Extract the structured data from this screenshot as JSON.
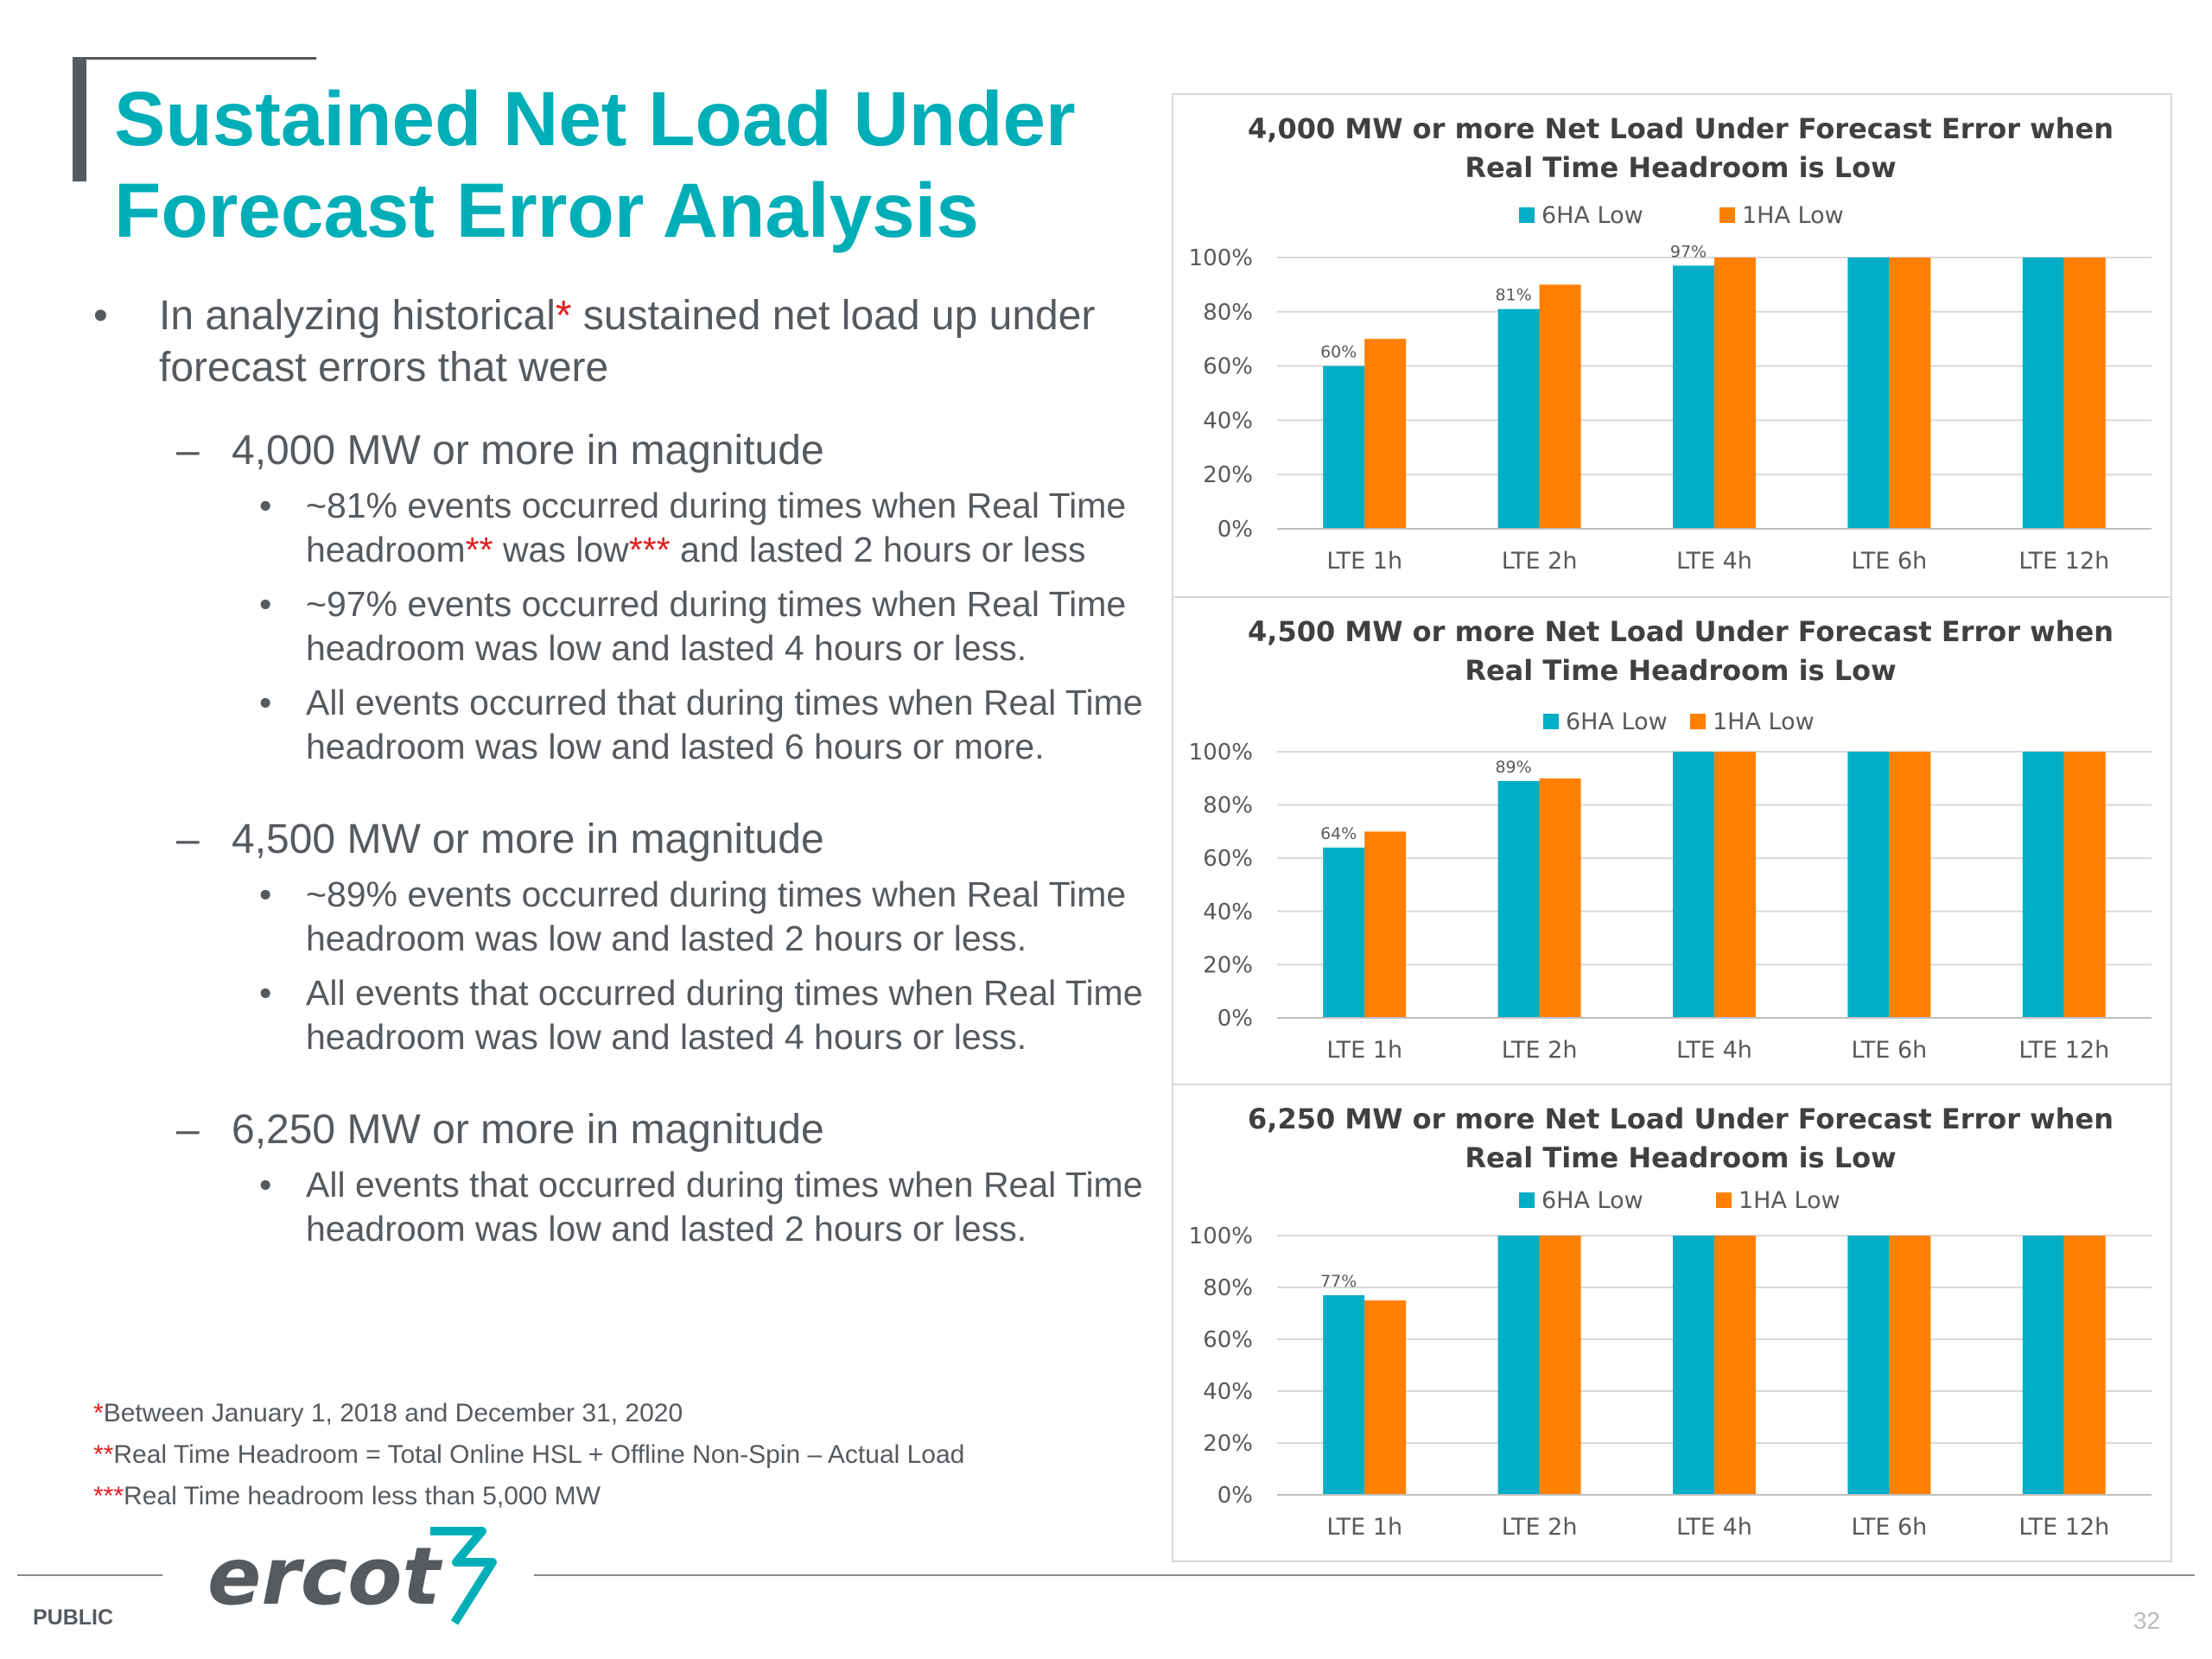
{
  "slide": {
    "title_line1": "Sustained Net Load Under",
    "title_line2": "Forecast Error Analysis",
    "page_number": "32",
    "footer_label": "PUBLIC",
    "logo_text": "ercot"
  },
  "bullets": {
    "intro_a": "In analyzing historical",
    "intro_star": "*",
    "intro_b": " sustained net load up under forecast errors that were",
    "group1": {
      "heading": "4,000 MW or more in magnitude",
      "b1_a": "~81% events occurred during times when Real Time headroom",
      "b1_star1": "**",
      "b1_b": " was low",
      "b1_star2": "***",
      "b1_c": " and lasted 2 hours or less",
      "b2": "~97% events occurred during times when Real Time headroom was low and lasted 4 hours or less.",
      "b3": "All events occurred that during times when Real Time headroom was low and lasted 6 hours or more."
    },
    "group2": {
      "heading": "4,500 MW or more in magnitude",
      "b1": "~89% events occurred during times when Real Time headroom was low and lasted 2 hours or less.",
      "b2": "All events that occurred during times when Real Time headroom was low and lasted 4 hours or less."
    },
    "group3": {
      "heading": "6,250 MW or more in magnitude",
      "b1": "All events that occurred during times when Real Time headroom was low and lasted 2 hours or less."
    }
  },
  "notes": {
    "n1_star": "*",
    "n1": "Between January 1, 2018 and December 31, 2020",
    "n2_star": "**",
    "n2": "Real Time Headroom = Total Online HSL + Offline Non-Spin – Actual Load",
    "n3_star": "***",
    "n3": "Real Time headroom less than 5,000 MW"
  },
  "colors": {
    "teal": "#00aec5",
    "orange": "#ff8000",
    "title": "#00aeb7",
    "accent_red": "#e02020"
  },
  "chart_data": [
    {
      "type": "bar",
      "title_line1": "4,000 MW or more Net Load Under Forecast Error  when",
      "title_line2": "Real Time Headroom is Low",
      "categories": [
        "LTE 1h",
        "LTE 2h",
        "LTE 4h",
        "LTE 6h",
        "LTE 12h"
      ],
      "series": [
        {
          "name": "6HA Low",
          "values": [
            60,
            81,
            97,
            100,
            100
          ],
          "color": "#00aec5"
        },
        {
          "name": "1HA Low",
          "values": [
            70,
            90,
            100,
            100,
            100
          ],
          "color": "#ff8000"
        }
      ],
      "data_labels": [
        "60%",
        "81%",
        "97%",
        "",
        ""
      ],
      "y_ticks": [
        "0%",
        "20%",
        "40%",
        "60%",
        "80%",
        "100%"
      ],
      "ylim": [
        0,
        100
      ],
      "legend": "top"
    },
    {
      "type": "bar",
      "title_line1": "4,500 MW or more Net Load Under Forecast Error  when",
      "title_line2": "Real Time Headroom is Low",
      "categories": [
        "LTE 1h",
        "LTE 2h",
        "LTE 4h",
        "LTE 6h",
        "LTE 12h"
      ],
      "series": [
        {
          "name": "6HA Low",
          "values": [
            64,
            89,
            100,
            100,
            100
          ],
          "color": "#00aec5"
        },
        {
          "name": "1HA Low",
          "values": [
            70,
            90,
            100,
            100,
            100
          ],
          "color": "#ff8000"
        }
      ],
      "data_labels": [
        "64%",
        "89%",
        "",
        "",
        ""
      ],
      "y_ticks": [
        "0%",
        "20%",
        "40%",
        "60%",
        "80%",
        "100%"
      ],
      "ylim": [
        0,
        100
      ],
      "legend": "top"
    },
    {
      "type": "bar",
      "title_line1": "6,250 MW or more Net Load Under Forecast Error  when",
      "title_line2": "Real Time Headroom is Low",
      "categories": [
        "LTE 1h",
        "LTE 2h",
        "LTE 4h",
        "LTE 6h",
        "LTE 12h"
      ],
      "series": [
        {
          "name": "6HA Low",
          "values": [
            77,
            100,
            100,
            100,
            100
          ],
          "color": "#00aec5"
        },
        {
          "name": "1HA Low",
          "values": [
            75,
            100,
            100,
            100,
            100
          ],
          "color": "#ff8000"
        }
      ],
      "data_labels": [
        "77%",
        "",
        "",
        "",
        ""
      ],
      "y_ticks": [
        "0%",
        "20%",
        "40%",
        "60%",
        "80%",
        "100%"
      ],
      "ylim": [
        0,
        100
      ],
      "legend": "top"
    }
  ]
}
